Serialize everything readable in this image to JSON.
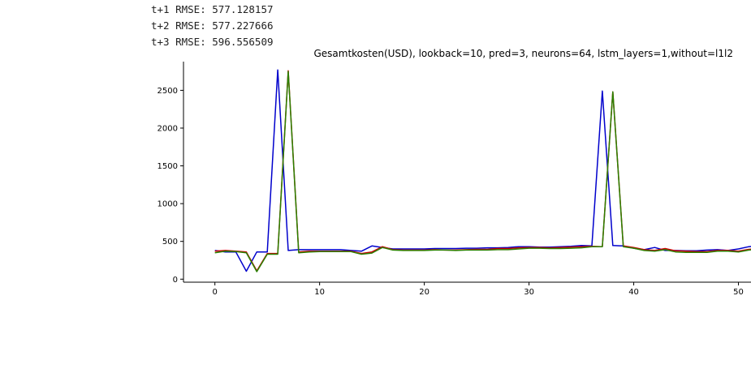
{
  "output_text": [
    "t+1 RMSE: 577.128157",
    "t+2 RMSE: 577.227666",
    "t+3 RMSE: 596.556509"
  ],
  "chart_data": {
    "type": "line",
    "title": "Gesamtkosten(USD), lookback=10, pred=3, neurons=64, lstm_layers=1,without=l1l2",
    "xlabel": "",
    "ylabel": "",
    "xlim": [
      -3,
      51.2
    ],
    "ylim": [
      -40,
      2880
    ],
    "xticks": [
      0,
      10,
      20,
      30,
      40,
      50
    ],
    "yticks": [
      0,
      500,
      1000,
      1500,
      2000,
      2500
    ],
    "grid": false,
    "legend": "none",
    "x": [
      0,
      1,
      2,
      3,
      4,
      5,
      6,
      7,
      8,
      9,
      10,
      11,
      12,
      13,
      14,
      15,
      16,
      17,
      18,
      19,
      20,
      21,
      22,
      23,
      24,
      25,
      26,
      27,
      28,
      29,
      30,
      31,
      32,
      33,
      34,
      35,
      36,
      37,
      38,
      39,
      40,
      41,
      42,
      43,
      44,
      45,
      46,
      47,
      48,
      49,
      50,
      51,
      52
    ],
    "series": [
      {
        "color": "#0000cc",
        "values": [
          380,
          360,
          360,
          105,
          360,
          360,
          2770,
          380,
          390,
          390,
          390,
          390,
          390,
          380,
          370,
          440,
          420,
          400,
          400,
          400,
          400,
          405,
          405,
          405,
          410,
          410,
          415,
          415,
          420,
          430,
          430,
          425,
          425,
          430,
          435,
          445,
          440,
          2490,
          445,
          440,
          410,
          390,
          420,
          380,
          380,
          375,
          375,
          385,
          390,
          380,
          400,
          430,
          440
        ]
      },
      {
        "color": "#cc0000",
        "values": [
          370,
          380,
          370,
          360,
          110,
          340,
          340,
          2760,
          360,
          370,
          370,
          370,
          370,
          370,
          340,
          360,
          430,
          390,
          385,
          385,
          385,
          390,
          385,
          385,
          390,
          395,
          395,
          405,
          405,
          415,
          420,
          420,
          415,
          420,
          425,
          430,
          435,
          430,
          2480,
          440,
          420,
          390,
          380,
          405,
          375,
          370,
          365,
          365,
          380,
          380,
          370,
          395,
          410
        ]
      },
      {
        "color": "#2a8000",
        "values": [
          350,
          370,
          365,
          350,
          100,
          330,
          330,
          2750,
          350,
          360,
          365,
          365,
          365,
          365,
          330,
          345,
          420,
          385,
          380,
          380,
          380,
          385,
          385,
          380,
          385,
          385,
          385,
          390,
          390,
          400,
          410,
          410,
          405,
          405,
          410,
          415,
          430,
          430,
          2480,
          430,
          410,
          380,
          370,
          390,
          360,
          355,
          355,
          355,
          370,
          370,
          360,
          385,
          400
        ]
      }
    ]
  }
}
